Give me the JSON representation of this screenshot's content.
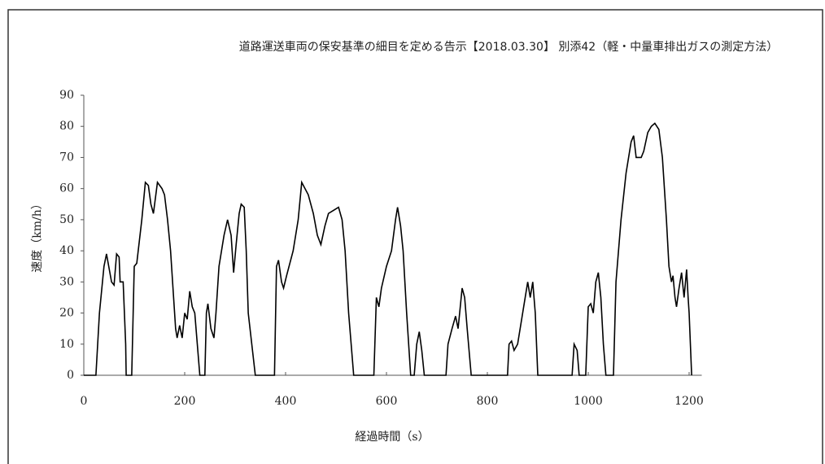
{
  "chart_data": {
    "type": "line",
    "title": "道路運送車両の保安基準の細目を定める告示【2018.03.30】 別添42（軽・中量車排出ガスの測定方法）",
    "xlabel": "経過時間（s）",
    "ylabel": "速度（km/h）",
    "x": [
      0,
      24,
      31,
      40,
      45,
      55,
      60,
      65,
      70,
      72,
      78,
      83,
      84,
      95,
      100,
      105,
      115,
      122,
      128,
      133,
      138,
      146,
      155,
      160,
      166,
      172,
      178,
      182,
      185,
      190,
      195,
      200,
      205,
      210,
      215,
      220,
      225,
      230,
      240,
      243,
      246,
      252,
      258,
      262,
      268,
      278,
      285,
      292,
      297,
      302,
      308,
      312,
      318,
      322,
      326,
      340,
      378,
      382,
      386,
      392,
      396,
      402,
      415,
      425,
      432,
      445,
      455,
      463,
      470,
      478,
      485,
      495,
      505,
      512,
      518,
      525,
      535,
      575,
      580,
      585,
      590,
      600,
      610,
      618,
      622,
      628,
      633,
      640,
      648,
      655,
      660,
      665,
      670,
      675,
      718,
      722,
      730,
      737,
      742,
      750,
      755,
      760,
      768,
      840,
      843,
      848,
      853,
      860,
      868,
      875,
      880,
      885,
      890,
      895,
      900,
      968,
      972,
      978,
      982,
      995,
      1000,
      1005,
      1010,
      1015,
      1020,
      1025,
      1030,
      1035,
      1050,
      1055,
      1065,
      1075,
      1085,
      1090,
      1095,
      1105,
      1110,
      1118,
      1125,
      1132,
      1140,
      1147,
      1155,
      1160,
      1165,
      1168,
      1172,
      1175,
      1180,
      1185,
      1190,
      1195,
      1198,
      1200,
      1203,
      1205
    ],
    "series": [
      {
        "name": "速度",
        "color": "#000000",
        "values": [
          0,
          0,
          20,
          35,
          39,
          30,
          29,
          39,
          38,
          30,
          30,
          10,
          0,
          0,
          35,
          36,
          50,
          62,
          61,
          55,
          52,
          62,
          60,
          58,
          50,
          40,
          25,
          15,
          12,
          16,
          12,
          20,
          18,
          27,
          22,
          20,
          10,
          0,
          0,
          20,
          23,
          15,
          12,
          20,
          35,
          45,
          50,
          45,
          33,
          42,
          52,
          55,
          54,
          40,
          20,
          0,
          0,
          35,
          37,
          30,
          28,
          32,
          40,
          50,
          62,
          58,
          52,
          45,
          42,
          48,
          52,
          53,
          54,
          50,
          40,
          20,
          0,
          0,
          25,
          22,
          28,
          35,
          40,
          50,
          54,
          48,
          40,
          20,
          0,
          0,
          10,
          14,
          8,
          0,
          0,
          10,
          15,
          19,
          15,
          28,
          25,
          15,
          0,
          0,
          10,
          11,
          8,
          10,
          18,
          25,
          30,
          25,
          30,
          20,
          0,
          0,
          10,
          8,
          0,
          0,
          22,
          23,
          20,
          30,
          33,
          25,
          10,
          0,
          0,
          30,
          50,
          65,
          75,
          77,
          70,
          70,
          72,
          78,
          80,
          81,
          79,
          70,
          50,
          35,
          30,
          32,
          25,
          22,
          28,
          33,
          25,
          34,
          25,
          20,
          8,
          0
        ]
      }
    ],
    "xlim": [
      0,
      1225
    ],
    "ylim": [
      0,
      90
    ],
    "xticks": [
      0,
      200,
      400,
      600,
      800,
      1000,
      1200
    ],
    "yticks": [
      0,
      10,
      20,
      30,
      40,
      50,
      60,
      70,
      80,
      90
    ]
  }
}
